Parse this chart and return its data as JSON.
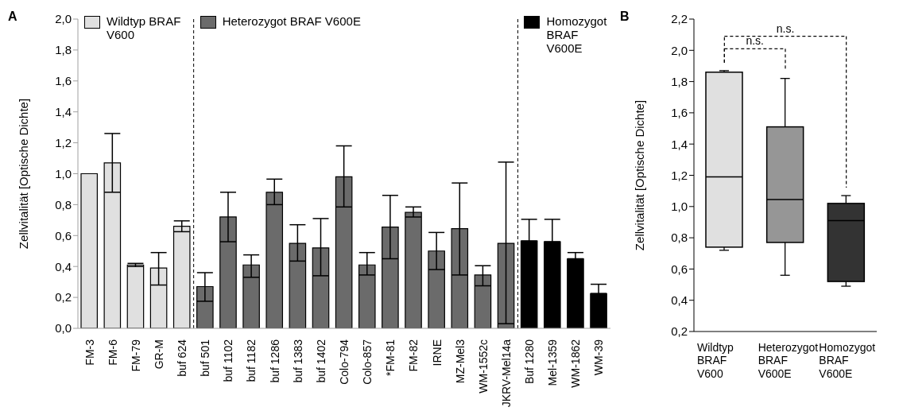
{
  "chart_data": [
    {
      "type": "bar",
      "title": "A",
      "ylabel": "Zellvitalität [Optische Dichte]",
      "categories": [
        "FM-3",
        "FM-6",
        "FM-79",
        "GR-M",
        "buf 624",
        "buf 501",
        "buf 1102",
        "buf 1182",
        "buf 1286",
        "buf 1383",
        "buf 1402",
        "Colo-794",
        "Colo-857",
        "*FM-81",
        "FM-82",
        "IRNE",
        "MZ-Mel3",
        "WM-1552c",
        "JKRV-Mel14a",
        "Buf 1280",
        "Mel-1359",
        "WM-1862",
        "WM-39"
      ],
      "series": [
        {
          "name": "Wildtyp BRAF V600",
          "color": "#e0e0e0",
          "values": [
            1.0,
            1.07,
            0.41,
            0.39,
            0.66,
            null,
            null,
            null,
            null,
            null,
            null,
            null,
            null,
            null,
            null,
            null,
            null,
            null,
            null,
            null,
            null,
            null,
            null
          ],
          "errors": [
            null,
            [
              0.88,
              1.26
            ],
            [
              0.4,
              0.42
            ],
            [
              0.28,
              0.49
            ],
            [
              0.625,
              0.695
            ],
            null,
            null,
            null,
            null,
            null,
            null,
            null,
            null,
            null,
            null,
            null,
            null,
            null,
            null,
            null,
            null,
            null,
            null
          ]
        },
        {
          "name": "Heterozygot BRAF V600E",
          "color": "#6b6b6b",
          "values": [
            null,
            null,
            null,
            null,
            null,
            0.27,
            0.72,
            0.41,
            0.88,
            0.55,
            0.52,
            0.98,
            0.41,
            0.655,
            0.75,
            0.5,
            0.645,
            0.345,
            0.55,
            null,
            null,
            null,
            null
          ],
          "errors": [
            null,
            null,
            null,
            null,
            null,
            [
              0.175,
              0.36
            ],
            [
              0.56,
              0.88
            ],
            [
              0.33,
              0.475
            ],
            [
              0.8,
              0.965
            ],
            [
              0.435,
              0.67
            ],
            [
              0.34,
              0.71
            ],
            [
              0.785,
              1.18
            ],
            [
              0.345,
              0.49
            ],
            [
              0.45,
              0.86
            ],
            [
              0.72,
              0.785
            ],
            [
              0.38,
              0.62
            ],
            [
              0.345,
              0.94
            ],
            [
              0.275,
              0.405
            ],
            [
              0.03,
              1.075
            ],
            null,
            null,
            null,
            null
          ]
        },
        {
          "name": "Homozygot BRAF V600E",
          "color": "#000000",
          "values": [
            null,
            null,
            null,
            null,
            null,
            null,
            null,
            null,
            null,
            null,
            null,
            null,
            null,
            null,
            null,
            null,
            null,
            null,
            null,
            0.565,
            0.56,
            0.45,
            0.225
          ],
          "errors": [
            null,
            null,
            null,
            null,
            null,
            null,
            null,
            null,
            null,
            null,
            null,
            null,
            null,
            null,
            null,
            null,
            null,
            null,
            null,
            [
              0.565,
              0.705
            ],
            [
              0.56,
              0.705
            ],
            [
              0.45,
              0.49
            ],
            [
              0.225,
              0.285
            ]
          ]
        }
      ],
      "ylim": [
        0,
        2
      ],
      "yticks": [
        {
          "value": 0,
          "label": "0,0"
        },
        {
          "value": 0.2,
          "label": "0,2"
        },
        {
          "value": 0.4,
          "label": "0,4"
        },
        {
          "value": 0.6,
          "label": "0,6"
        },
        {
          "value": 0.8,
          "label": "0,8"
        },
        {
          "value": 1.0,
          "label": "1,0"
        },
        {
          "value": 1.2,
          "label": "1,2"
        },
        {
          "value": 1.4,
          "label": "1,4"
        },
        {
          "value": 1.6,
          "label": "1,6"
        },
        {
          "value": 1.8,
          "label": "1,8"
        },
        {
          "value": 2.0,
          "label": "2,0"
        }
      ],
      "legend": "top"
    },
    {
      "type": "box",
      "title": "B",
      "ylabel": "Zellvitalität [Optische Dichte]",
      "categories": [
        "Wildtyp BRAF V600",
        "Heterozygot BRAF V600E",
        "Homozygot BRAF V600E"
      ],
      "colors": [
        "#e0e0e0",
        "#969696",
        "#333333"
      ],
      "boxes": [
        {
          "low": 0.72,
          "q1": 0.74,
          "median": 1.19,
          "q3": 1.86,
          "high": 1.87
        },
        {
          "low": 0.56,
          "q1": 0.77,
          "median": 1.045,
          "q3": 1.51,
          "high": 1.82
        },
        {
          "low": 0.49,
          "q1": 0.52,
          "median": 0.91,
          "q3": 1.02,
          "high": 1.07
        }
      ],
      "ylim": [
        0.2,
        2.2
      ],
      "yticks": [
        {
          "value": 0.2,
          "label": "0,2"
        },
        {
          "value": 0.4,
          "label": "0,4"
        },
        {
          "value": 0.6,
          "label": "0,6"
        },
        {
          "value": 0.8,
          "label": "0,8"
        },
        {
          "value": 1.0,
          "label": "1,0"
        },
        {
          "value": 1.2,
          "label": "1,2"
        },
        {
          "value": 1.4,
          "label": "1,4"
        },
        {
          "value": 1.6,
          "label": "1,6"
        },
        {
          "value": 1.8,
          "label": "1,8"
        },
        {
          "value": 2.0,
          "label": "2,0"
        },
        {
          "value": 2.2,
          "label": "2,2"
        }
      ],
      "annotations": [
        "n.s.",
        "n.s."
      ]
    }
  ]
}
